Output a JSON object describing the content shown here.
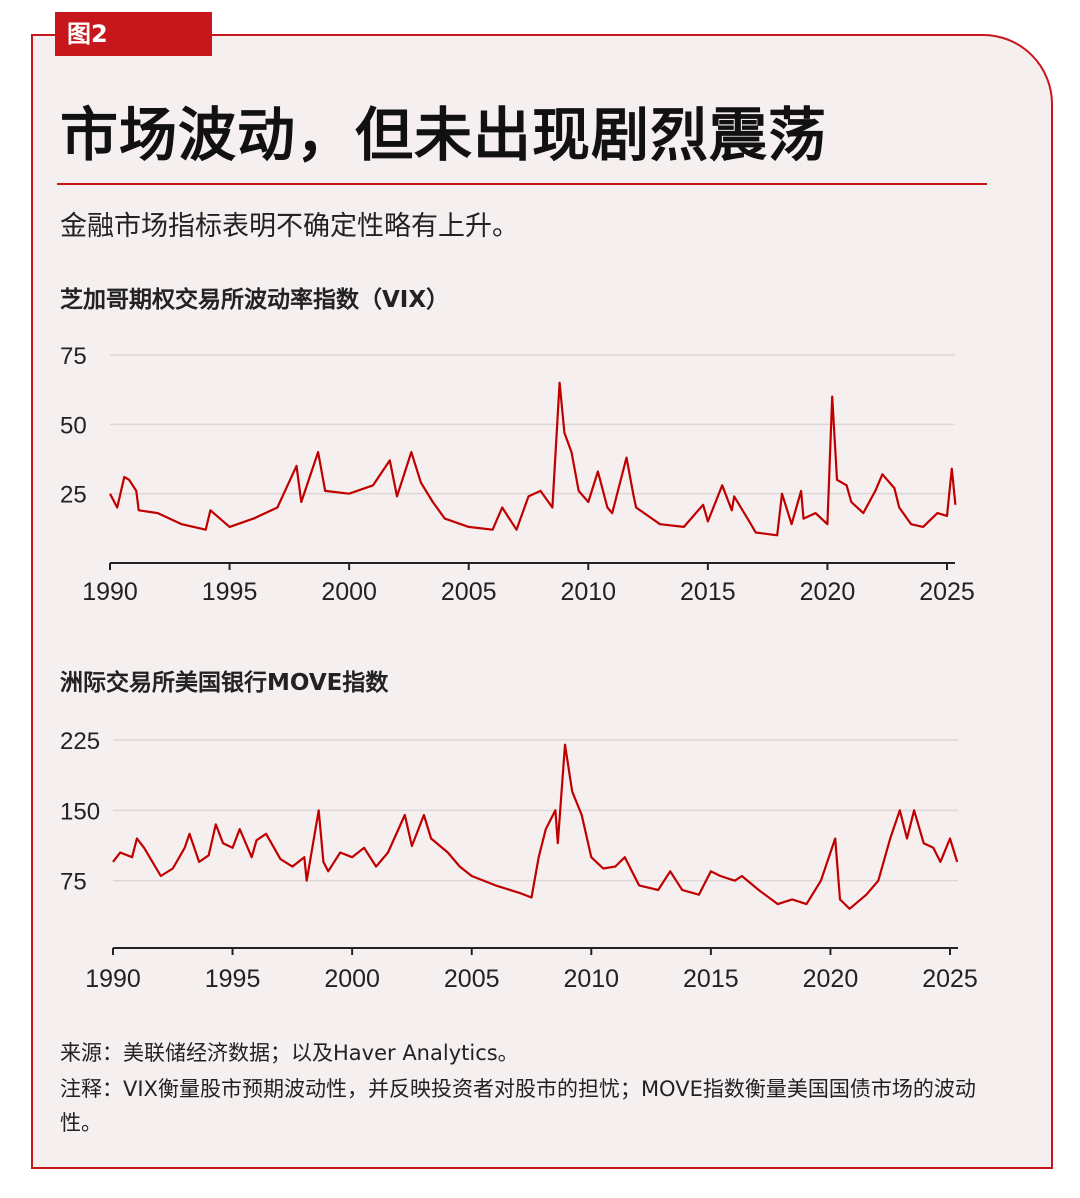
{
  "figure_label": "图2",
  "title": "市场波动，但未出现剧烈震荡",
  "subtitle": "金融市场指标表明不确定性略有上升。",
  "colors": {
    "accent": "#c8161d",
    "line": "#c00000",
    "background": "#f6efef"
  },
  "chart_data": [
    {
      "type": "line",
      "title": "芝加哥期权交易所波动率指数（VIX）",
      "xlim": [
        1990,
        2025
      ],
      "ylim": [
        0,
        75
      ],
      "xticks": [
        "1990",
        "1995",
        "2000",
        "2005",
        "2010",
        "2015",
        "2020",
        "2025"
      ],
      "yticks": [
        "25",
        "50",
        "75"
      ],
      "grid": true,
      "x": [
        1990,
        1990.3,
        1990.6,
        1990.8,
        1991.1,
        1991.2,
        1992,
        1993,
        1994,
        1994.2,
        1995,
        1996,
        1997,
        1997.8,
        1998,
        1998.7,
        1999,
        2000,
        2001,
        2001.7,
        2002,
        2002.6,
        2003,
        2003.5,
        2004,
        2005,
        2006,
        2006.4,
        2007,
        2007.5,
        2008,
        2008.5,
        2008.8,
        2009,
        2009.3,
        2009.6,
        2010,
        2010.4,
        2010.8,
        2011,
        2011.6,
        2011.9,
        2012,
        2012.5,
        2013,
        2014,
        2014.8,
        2015,
        2015.6,
        2016,
        2016.1,
        2016.8,
        2017,
        2017.9,
        2018.1,
        2018.5,
        2018.9,
        2019,
        2019.5,
        2020,
        2020.2,
        2020.4,
        2020.8,
        2021,
        2021.5,
        2022,
        2022.3,
        2022.8,
        2023,
        2023.5,
        2024,
        2024.6,
        2025,
        2025.2,
        2025.35
      ],
      "y": [
        25,
        20,
        31,
        30,
        26,
        19,
        18,
        14,
        12,
        19,
        13,
        16,
        20,
        35,
        22,
        40,
        26,
        25,
        28,
        37,
        24,
        40,
        29,
        22,
        16,
        13,
        12,
        20,
        12,
        24,
        26,
        20,
        65,
        47,
        40,
        26,
        22,
        33,
        20,
        18,
        38,
        24,
        20,
        17,
        14,
        13,
        21,
        15,
        28,
        19,
        24,
        14,
        11,
        10,
        25,
        14,
        26,
        16,
        18,
        14,
        60,
        30,
        28,
        22,
        18,
        26,
        32,
        27,
        20,
        14,
        13,
        18,
        17,
        34,
        21
      ]
    },
    {
      "type": "line",
      "title": "洲际交易所美国银行MOVE指数",
      "xlim": [
        1990,
        2025
      ],
      "ylim": [
        0,
        225
      ],
      "xticks": [
        "1990",
        "1995",
        "2000",
        "2005",
        "2010",
        "2015",
        "2020",
        "2025"
      ],
      "yticks": [
        "75",
        "150",
        "225"
      ],
      "grid": true,
      "x": [
        1990,
        1990.3,
        1990.8,
        1991,
        1991.3,
        1992,
        1992.5,
        1993,
        1993.2,
        1993.6,
        1994,
        1994.3,
        1994.6,
        1995,
        1995.3,
        1995.8,
        1996,
        1996.4,
        1997,
        1997.5,
        1998,
        1998.1,
        1998.6,
        1998.8,
        1999,
        1999.5,
        2000,
        2000.5,
        2001,
        2001.5,
        2002.2,
        2002.5,
        2003,
        2003.3,
        2004,
        2004.5,
        2005,
        2006,
        2007,
        2007.5,
        2007.8,
        2008.1,
        2008.5,
        2008.6,
        2008.9,
        2009.2,
        2009.6,
        2010,
        2010.5,
        2011,
        2011.4,
        2012,
        2012.8,
        2013.3,
        2013.8,
        2014.5,
        2015,
        2015.4,
        2016,
        2016.3,
        2017,
        2017.8,
        2018.4,
        2019,
        2019.6,
        2020.2,
        2020.4,
        2020.8,
        2021.5,
        2022,
        2022.5,
        2022.9,
        2023.2,
        2023.5,
        2023.9,
        2024.3,
        2024.6,
        2025,
        2025.3
      ],
      "y": [
        95,
        105,
        100,
        120,
        110,
        80,
        88,
        110,
        125,
        95,
        102,
        135,
        115,
        110,
        130,
        100,
        118,
        125,
        98,
        90,
        100,
        75,
        150,
        95,
        85,
        105,
        100,
        110,
        90,
        105,
        145,
        112,
        145,
        120,
        105,
        90,
        80,
        70,
        62,
        57,
        100,
        130,
        150,
        115,
        220,
        170,
        145,
        100,
        88,
        90,
        100,
        70,
        65,
        85,
        65,
        60,
        85,
        80,
        75,
        80,
        65,
        50,
        55,
        50,
        75,
        120,
        55,
        45,
        60,
        75,
        120,
        150,
        120,
        150,
        115,
        110,
        95,
        120,
        95
      ]
    }
  ],
  "source": "来源：美联储经济数据；以及Haver Analytics。",
  "note": "注释：VIX衡量股市预期波动性，并反映投资者对股市的担忧；MOVE指数衡量美国国债市场的波动性。"
}
